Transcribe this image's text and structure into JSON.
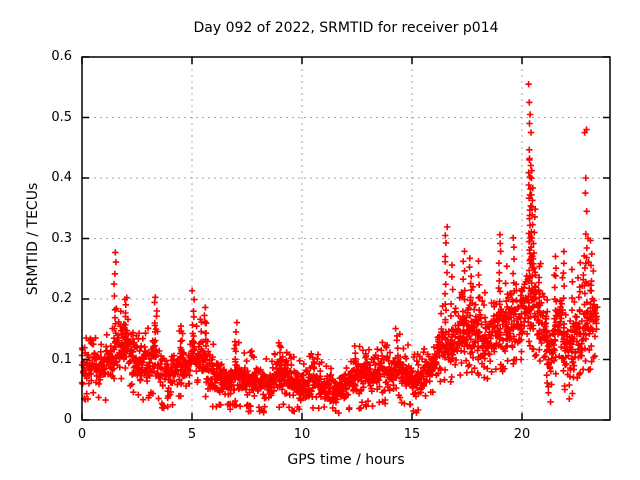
{
  "chart_data": {
    "type": "scatter",
    "title": "Day 092 of 2022, SRMTID for receiver p014",
    "xlabel": "GPS time / hours",
    "ylabel": "SRMTID / TECUs",
    "xlim": [
      0,
      24
    ],
    "ylim": [
      0,
      0.6
    ],
    "xticks": [
      0,
      5,
      10,
      15,
      20
    ],
    "yticks": [
      0,
      0.1,
      0.2,
      0.3,
      0.4,
      0.5,
      0.6
    ],
    "xtick_labels": [
      "0",
      "5",
      "10",
      "15",
      "20"
    ],
    "ytick_labels": [
      "0",
      "0.1",
      "0.2",
      "0.3",
      "0.4",
      "0.5",
      "0.6"
    ],
    "grid": true,
    "legend": "none",
    "marker": "plus",
    "marker_color": "#ff0000",
    "grid_color": "#a6a6a6",
    "axis_color": "#000000",
    "background_color": "#ffffff",
    "x_end": 23.4,
    "point_step_hours": 0.025,
    "band_envelope": [
      [
        0.0,
        0.05,
        0.125
      ],
      [
        0.5,
        0.055,
        0.12
      ],
      [
        1.0,
        0.05,
        0.13
      ],
      [
        1.4,
        0.06,
        0.15
      ],
      [
        1.8,
        0.08,
        0.18
      ],
      [
        2.1,
        0.08,
        0.185
      ],
      [
        2.4,
        0.06,
        0.14
      ],
      [
        2.8,
        0.05,
        0.12
      ],
      [
        3.2,
        0.06,
        0.15
      ],
      [
        3.6,
        0.04,
        0.12
      ],
      [
        4.0,
        0.03,
        0.1
      ],
      [
        4.4,
        0.05,
        0.14
      ],
      [
        4.8,
        0.05,
        0.13
      ],
      [
        5.1,
        0.06,
        0.15
      ],
      [
        5.6,
        0.05,
        0.14
      ],
      [
        6.0,
        0.04,
        0.11
      ],
      [
        6.5,
        0.035,
        0.09
      ],
      [
        7.0,
        0.04,
        0.12
      ],
      [
        7.5,
        0.035,
        0.1
      ],
      [
        8.0,
        0.03,
        0.095
      ],
      [
        8.5,
        0.03,
        0.085
      ],
      [
        9.0,
        0.04,
        0.115
      ],
      [
        9.5,
        0.035,
        0.095
      ],
      [
        10.0,
        0.03,
        0.085
      ],
      [
        10.5,
        0.03,
        0.1
      ],
      [
        11.0,
        0.03,
        0.085
      ],
      [
        11.5,
        0.025,
        0.075
      ],
      [
        12.0,
        0.03,
        0.09
      ],
      [
        12.4,
        0.035,
        0.115
      ],
      [
        12.8,
        0.04,
        0.1
      ],
      [
        13.2,
        0.04,
        0.11
      ],
      [
        13.6,
        0.04,
        0.115
      ],
      [
        14.0,
        0.045,
        0.11
      ],
      [
        14.4,
        0.05,
        0.125
      ],
      [
        14.8,
        0.04,
        0.11
      ],
      [
        15.2,
        0.03,
        0.095
      ],
      [
        15.6,
        0.05,
        0.11
      ],
      [
        16.0,
        0.06,
        0.135
      ],
      [
        16.4,
        0.08,
        0.17
      ],
      [
        16.8,
        0.08,
        0.16
      ],
      [
        17.2,
        0.09,
        0.19
      ],
      [
        17.6,
        0.1,
        0.21
      ],
      [
        18.0,
        0.09,
        0.2
      ],
      [
        18.4,
        0.08,
        0.17
      ],
      [
        18.8,
        0.1,
        0.2
      ],
      [
        19.2,
        0.1,
        0.21
      ],
      [
        19.6,
        0.11,
        0.22
      ],
      [
        20.0,
        0.11,
        0.2
      ],
      [
        20.3,
        0.14,
        0.3
      ],
      [
        20.6,
        0.12,
        0.27
      ],
      [
        21.0,
        0.09,
        0.21
      ],
      [
        21.3,
        0.05,
        0.14
      ],
      [
        21.6,
        0.1,
        0.24
      ],
      [
        21.9,
        0.07,
        0.2
      ],
      [
        22.2,
        0.05,
        0.16
      ],
      [
        22.5,
        0.08,
        0.2
      ],
      [
        22.8,
        0.1,
        0.24
      ],
      [
        23.1,
        0.1,
        0.23
      ],
      [
        23.4,
        0.13,
        0.21
      ]
    ],
    "spike_columns": [
      [
        1.5,
        0.13,
        0.277,
        9
      ],
      [
        2.0,
        0.11,
        0.2,
        10
      ],
      [
        3.35,
        0.125,
        0.2,
        9
      ],
      [
        4.5,
        0.09,
        0.155,
        7
      ],
      [
        5.05,
        0.1,
        0.21,
        9
      ],
      [
        5.6,
        0.09,
        0.19,
        8
      ],
      [
        7.0,
        0.07,
        0.163,
        7
      ],
      [
        9.0,
        0.06,
        0.122,
        6
      ],
      [
        12.4,
        0.06,
        0.122,
        6
      ],
      [
        14.3,
        0.08,
        0.155,
        5
      ],
      [
        16.55,
        0.13,
        0.322,
        13
      ],
      [
        16.8,
        0.1,
        0.26,
        8
      ],
      [
        17.35,
        0.12,
        0.276,
        11
      ],
      [
        17.65,
        0.12,
        0.268,
        10
      ],
      [
        18.05,
        0.1,
        0.26,
        9
      ],
      [
        18.3,
        0.09,
        0.21,
        7
      ],
      [
        19.0,
        0.12,
        0.306,
        13
      ],
      [
        19.3,
        0.1,
        0.25,
        8
      ],
      [
        19.6,
        0.12,
        0.3,
        11
      ],
      [
        20.0,
        0.1,
        0.22,
        9
      ],
      [
        20.35,
        0.15,
        0.445,
        34
      ],
      [
        20.45,
        0.2,
        0.41,
        18
      ],
      [
        20.55,
        0.15,
        0.35,
        12
      ],
      [
        20.8,
        0.1,
        0.25,
        10
      ],
      [
        21.1,
        0.06,
        0.2,
        9
      ],
      [
        21.5,
        0.1,
        0.27,
        11
      ],
      [
        21.9,
        0.08,
        0.28,
        11
      ],
      [
        22.3,
        0.07,
        0.25,
        9
      ],
      [
        22.6,
        0.08,
        0.22,
        8
      ],
      [
        22.9,
        0.1,
        0.305,
        12
      ],
      [
        23.15,
        0.1,
        0.3,
        10
      ]
    ],
    "outlier_points": [
      [
        20.3,
        0.555
      ],
      [
        20.33,
        0.525
      ],
      [
        20.37,
        0.505
      ],
      [
        20.34,
        0.49
      ],
      [
        20.41,
        0.475
      ],
      [
        22.85,
        0.475
      ],
      [
        22.93,
        0.48
      ],
      [
        22.9,
        0.4
      ],
      [
        22.88,
        0.375
      ],
      [
        22.94,
        0.345
      ],
      [
        23.0,
        0.3
      ],
      [
        22.65,
        0.26
      ],
      [
        15.2,
        0.012
      ],
      [
        21.3,
        0.03
      ],
      [
        22.15,
        0.035
      ],
      [
        3.9,
        0.022
      ],
      [
        8.3,
        0.022
      ],
      [
        10.5,
        0.02
      ],
      [
        11.4,
        0.02
      ],
      [
        6.3,
        0.025
      ],
      [
        12.9,
        0.025
      ]
    ]
  }
}
